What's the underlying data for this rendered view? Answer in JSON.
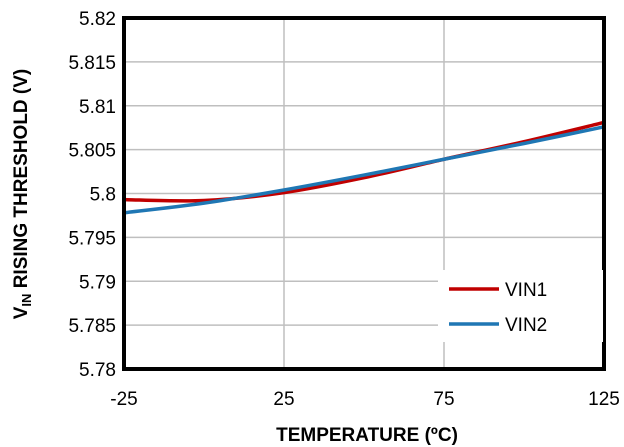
{
  "chart_data": {
    "type": "line",
    "title": "",
    "xlabel": "TEMPERATURE  (ºC)",
    "ylabel": {
      "prefix": "V",
      "subscript": "IN",
      "suffix": " RISING THRESHOLD  (V)"
    },
    "xlim": [
      -25,
      125
    ],
    "ylim": [
      5.78,
      5.82
    ],
    "x_ticks": [
      "-25",
      "25",
      "75",
      "125"
    ],
    "x_tick_values": [
      -25,
      25,
      75,
      125
    ],
    "y_ticks": [
      "5.78",
      "5.785",
      "5.79",
      "5.795",
      "5.8",
      "5.805",
      "5.81",
      "5.815",
      "5.82"
    ],
    "y_tick_values": [
      5.78,
      5.785,
      5.79,
      5.795,
      5.8,
      5.805,
      5.81,
      5.815,
      5.82
    ],
    "grid": {
      "x": true,
      "y": true
    },
    "legend": "bottom-right",
    "series": [
      {
        "name": "VIN1",
        "color": "#C00000",
        "x": [
          -25,
          0,
          25,
          50,
          75,
          100,
          125
        ],
        "y": [
          5.7993,
          5.7992,
          5.8001,
          5.8018,
          5.8039,
          5.8059,
          5.8081
        ]
      },
      {
        "name": "VIN2",
        "color": "#1F77B4",
        "x": [
          -25,
          0,
          25,
          50,
          75,
          100,
          125
        ],
        "y": [
          5.7978,
          5.7989,
          5.8004,
          5.8021,
          5.8039,
          5.8057,
          5.8076
        ]
      }
    ]
  }
}
